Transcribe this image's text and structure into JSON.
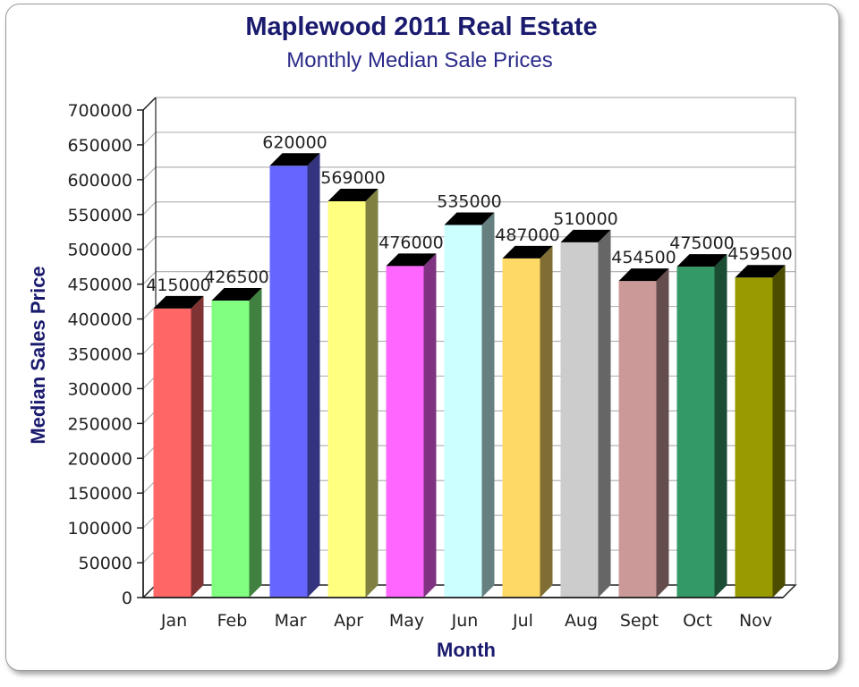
{
  "chart_data": {
    "type": "bar",
    "title": "Maplewood 2011 Real Estate",
    "subtitle": "Monthly Median Sale Prices",
    "xlabel": "Month",
    "ylabel": "Median Sales Price",
    "ylim": [
      0,
      700000
    ],
    "ytick_step": 50000,
    "categories": [
      "Jan",
      "Feb",
      "Mar",
      "Apr",
      "May",
      "Jun",
      "Jul",
      "Aug",
      "Sept",
      "Oct",
      "Nov"
    ],
    "values": [
      415000,
      426500,
      620000,
      569000,
      476000,
      535000,
      487000,
      510000,
      454500,
      475000,
      459500
    ],
    "colors": [
      "#ff6666",
      "#80ff80",
      "#6666ff",
      "#ffff80",
      "#ff66ff",
      "#ccffff",
      "#ffd966",
      "#cccccc",
      "#cc9999",
      "#339966",
      "#999900"
    ],
    "grid": true,
    "legend": "none"
  }
}
